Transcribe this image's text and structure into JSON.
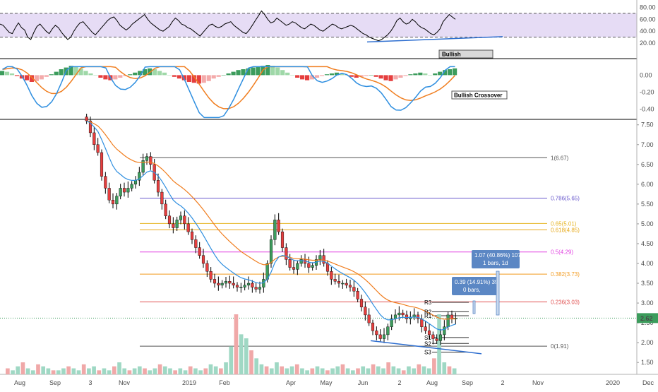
{
  "chart_data": {
    "type": "candlestick",
    "symbol_price_badge": "2.62",
    "badge_color": "#3c9c5c",
    "time_labels": [
      "Aug",
      "Sep",
      "3",
      "Nov",
      "2019",
      "Feb",
      "Apr",
      "May",
      "Jun",
      "2",
      "Aug",
      "Sep",
      "2",
      "Nov",
      "2020",
      "Dec"
    ],
    "panels": {
      "rsi": {
        "ticks": [
          "80.00",
          "60.00",
          "40.00",
          "20.00"
        ],
        "band": [
          30,
          70
        ],
        "annotation": "Bullish",
        "band_fill": "#e6dcf5",
        "line_color": "#000000",
        "values": [
          52,
          50,
          44,
          38,
          36,
          46,
          54,
          46,
          42,
          30,
          26,
          38,
          48,
          52,
          46,
          40,
          36,
          44,
          50,
          46,
          38,
          32,
          26,
          30,
          40,
          48,
          54,
          56,
          50,
          44,
          38,
          34,
          40,
          46,
          52,
          58,
          62,
          64,
          58,
          50,
          46,
          42,
          46,
          52,
          56,
          60,
          64,
          68,
          60,
          54,
          50,
          46,
          42,
          40,
          44,
          48,
          56,
          62,
          58,
          52,
          50,
          46,
          44,
          40,
          36,
          32,
          38,
          44,
          50,
          52,
          48,
          46,
          48,
          52,
          54,
          56,
          50,
          46,
          42,
          38,
          36,
          42,
          50,
          58,
          66,
          74,
          68,
          60,
          54,
          56,
          62,
          58,
          54,
          50,
          52,
          56,
          54,
          50,
          46,
          44,
          48,
          52,
          50,
          46,
          42,
          40,
          44,
          48,
          52,
          50,
          46,
          44,
          46,
          48,
          50,
          48,
          44,
          40,
          36,
          34,
          30,
          28,
          26,
          24,
          26,
          30,
          34,
          40,
          48,
          58,
          62,
          56,
          52,
          54,
          60,
          56,
          50,
          46,
          44,
          40,
          36,
          34,
          38,
          44,
          56,
          62,
          68,
          64,
          60
        ]
      },
      "macd": {
        "ticks": [
          "0.00",
          "-0.20",
          "-0.40"
        ],
        "annotation": "Bullish Crossover",
        "macd_color": "#2f8fe0",
        "signal_color": "#f07d1e",
        "hist_pos": "#3c9c5c",
        "hist_pos_light": "#9fd8a8",
        "hist_neg": "#e53e3e",
        "hist_neg_light": "#f4aaaa",
        "hist": [
          0.05,
          0.04,
          0.02,
          -0.01,
          -0.04,
          -0.06,
          -0.08,
          -0.07,
          -0.05,
          -0.02,
          0.01,
          0.04,
          0.07,
          0.09,
          0.11,
          0.1,
          0.08,
          0.05,
          0.02,
          0.0,
          -0.03,
          -0.05,
          -0.06,
          -0.05,
          -0.03,
          -0.01,
          0.01,
          0.03,
          0.05,
          0.07,
          0.08,
          0.07,
          0.05,
          0.03,
          0.0,
          -0.02,
          -0.04,
          -0.06,
          -0.08,
          -0.09,
          -0.1,
          -0.09,
          -0.07,
          -0.04,
          -0.02,
          0.0,
          0.02,
          0.04,
          0.06,
          0.07,
          0.08,
          0.09,
          0.1,
          0.11,
          0.12,
          0.11,
          0.09,
          0.06,
          0.03,
          0.0,
          -0.03,
          -0.05,
          -0.06,
          -0.05,
          -0.03,
          -0.01,
          0.01,
          0.02,
          0.03,
          0.02,
          0.0,
          -0.02,
          -0.03,
          -0.02,
          -0.01,
          0.0,
          -0.02,
          -0.04,
          -0.06,
          -0.07,
          -0.05,
          -0.03,
          -0.01,
          0.01,
          0.02,
          0.03,
          0.02,
          0.0,
          0.02,
          0.04,
          0.06,
          0.07,
          0.08
        ]
      },
      "price": {
        "ticks": [
          "7.50",
          "7.00",
          "6.50",
          "6.00",
          "5.50",
          "5.00",
          "4.50",
          "4.00",
          "3.50",
          "3.00",
          "2.50",
          "2.00",
          "1.50"
        ],
        "tick_values": [
          7.5,
          7.0,
          6.5,
          6.0,
          5.5,
          5.0,
          4.5,
          4.0,
          3.5,
          3.0,
          2.5,
          2.0,
          1.5
        ],
        "y_range": [
          1.2,
          7.62
        ],
        "current_price": 2.62,
        "candle_up": "#3c9c5c",
        "candle_down": "#e53e3e",
        "candle_wick": "#000000",
        "ma_fast_color": "#2f8fe0",
        "ma_slow_color": "#f07d1e",
        "closes": [
          7.6,
          7.3,
          7.0,
          6.8,
          6.2,
          5.9,
          5.6,
          5.5,
          5.7,
          5.9,
          5.8,
          5.9,
          6.0,
          6.1,
          6.3,
          6.6,
          6.7,
          6.5,
          6.1,
          5.8,
          5.5,
          5.2,
          5.0,
          4.9,
          5.1,
          5.2,
          5.0,
          4.8,
          4.6,
          4.4,
          4.2,
          4.0,
          3.8,
          3.6,
          3.5,
          3.45,
          3.5,
          3.55,
          3.5,
          3.45,
          3.4,
          3.4,
          3.45,
          3.5,
          3.4,
          3.35,
          3.4,
          3.6,
          4.0,
          4.6,
          5.1,
          4.8,
          4.4,
          4.1,
          3.9,
          3.85,
          4.0,
          4.1,
          4.0,
          3.9,
          3.95,
          4.1,
          4.2,
          4.0,
          3.8,
          3.6,
          3.55,
          3.5,
          3.5,
          3.45,
          3.4,
          3.3,
          3.1,
          2.9,
          2.7,
          2.5,
          2.3,
          2.2,
          2.1,
          2.2,
          2.4,
          2.6,
          2.7,
          2.75,
          2.7,
          2.6,
          2.65,
          2.7,
          2.6,
          2.4,
          2.3,
          2.2,
          2.1,
          2.05,
          2.2,
          2.4,
          2.7,
          2.6,
          2.62
        ],
        "fib_levels": [
          {
            "label": "1(6.67)",
            "value": 6.67,
            "color": "#555555"
          },
          {
            "label": "0.786(5.65)",
            "value": 5.65,
            "color": "#6a5acd"
          },
          {
            "label": "0.65(5.01)",
            "value": 5.01,
            "color": "#e6b422"
          },
          {
            "label": "0.618(4.85)",
            "value": 4.85,
            "color": "#e6a817"
          },
          {
            "label": "0.5(4.29)",
            "value": 4.29,
            "color": "#e040e0"
          },
          {
            "label": "0.382(3.73)",
            "value": 3.73,
            "color": "#f29a1e"
          },
          {
            "label": "0.236(3.03)",
            "value": 3.03,
            "color": "#e05050"
          },
          {
            "label": "0(1.91)",
            "value": 1.91,
            "color": "#555555"
          }
        ],
        "pivots": [
          {
            "label": "R3",
            "value": 3.02
          },
          {
            "label": "R2",
            "value": 2.78
          },
          {
            "label": "R1",
            "value": 2.68
          },
          {
            "label": "S1",
            "value": 2.13
          },
          {
            "label": "S2",
            "value": 1.98
          },
          {
            "label": "S3",
            "value": 1.76
          }
        ],
        "callouts": [
          {
            "line1": "1.07 (40.86%) 107",
            "line2": "1 bars, 1d"
          },
          {
            "line1": "0.39 (14.91%) 39",
            "line2": "0 bars,"
          }
        ],
        "volume": [
          3,
          2,
          4,
          6,
          3,
          2,
          5,
          4,
          3,
          2,
          2,
          3,
          4,
          3,
          2,
          5,
          3,
          4,
          2,
          3,
          2,
          4,
          6,
          3,
          2,
          3,
          4,
          3,
          2,
          3,
          5,
          4,
          3,
          2,
          3,
          2,
          4,
          3,
          2,
          3,
          5,
          4,
          3,
          6,
          14,
          30,
          20,
          18,
          12,
          8,
          5,
          4,
          3,
          6,
          4,
          3,
          4,
          5,
          3,
          2,
          3,
          4,
          3,
          2,
          3,
          4,
          5,
          3,
          2,
          3,
          4,
          3,
          5,
          4,
          3,
          6,
          4,
          3,
          2,
          4,
          3,
          5,
          4,
          3,
          8,
          30,
          6,
          4,
          3
        ]
      }
    }
  }
}
